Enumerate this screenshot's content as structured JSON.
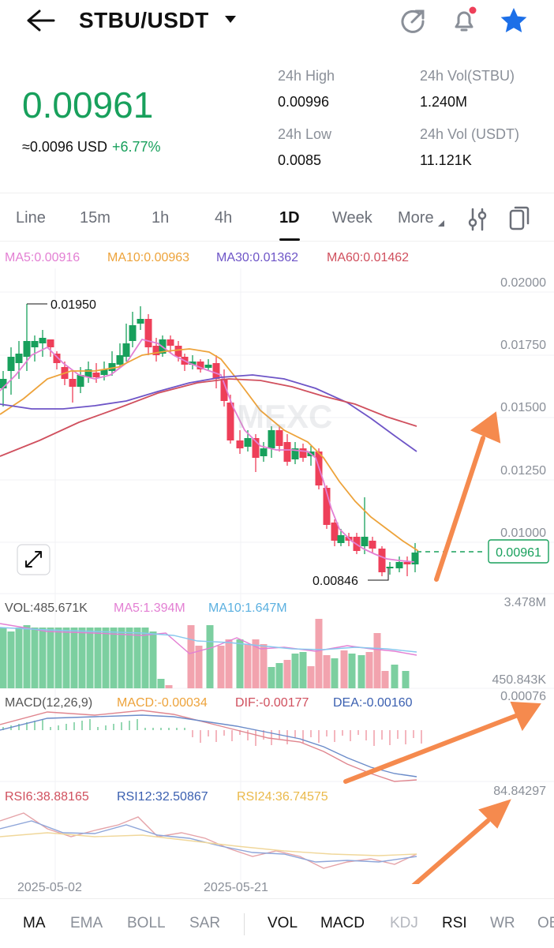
{
  "header": {
    "pair": "STBU/USDT"
  },
  "ticker": {
    "price": "0.00961",
    "usd_approx": "≈0.0096 USD",
    "change": "+6.77%",
    "high_label": "24h High",
    "high_value": "0.00996",
    "low_label": "24h Low",
    "low_value": "0.0085",
    "vol_base_label": "24h Vol(STBU)",
    "vol_base_value": "1.240M",
    "vol_quote_label": "24h Vol (USDT)",
    "vol_quote_value": "11.121K"
  },
  "tabs": [
    "Line",
    "15m",
    "1h",
    "4h",
    "1D",
    "Week",
    "More"
  ],
  "active_tab": "1D",
  "ma_legend": {
    "ma5": "MA5:0.00916",
    "ma10": "MA10:0.00963",
    "ma30": "MA30:0.01362",
    "ma60": "MA60:0.01462"
  },
  "price_axis": [
    "0.02000",
    "0.01750",
    "0.01500",
    "0.01250",
    "0.01000"
  ],
  "current_price_tag": "0.00961",
  "high_marker": "0.01950",
  "low_marker": "0.00846",
  "volume": {
    "vol": "VOL:485.671K",
    "ma5": "MA5:1.394M",
    "ma10": "MA10:1.647M",
    "max": "3.478M",
    "min": "450.843K"
  },
  "macd": {
    "label": "MACD(12,26,9)",
    "macd": "MACD:-0.00034",
    "dif": "DIF:-0.00177",
    "dea": "DEA:-0.00160",
    "axis": "0.00076"
  },
  "rsi": {
    "rsi6": "RSI6:38.88165",
    "rsi12": "RSI12:32.50867",
    "rsi24": "RSI24:36.74575",
    "axis": "84.84297"
  },
  "dates": [
    "2025-05-02",
    "2025-05-21"
  ],
  "indicators_main": [
    "MA",
    "EMA",
    "BOLL",
    "SAR"
  ],
  "indicators_sub": [
    "VOL",
    "MACD",
    "KDJ",
    "RSI",
    "WR",
    "OB"
  ],
  "colors": {
    "up": "#18a05c",
    "down": "#ee3f59",
    "accent": "#1c6fe8"
  }
}
